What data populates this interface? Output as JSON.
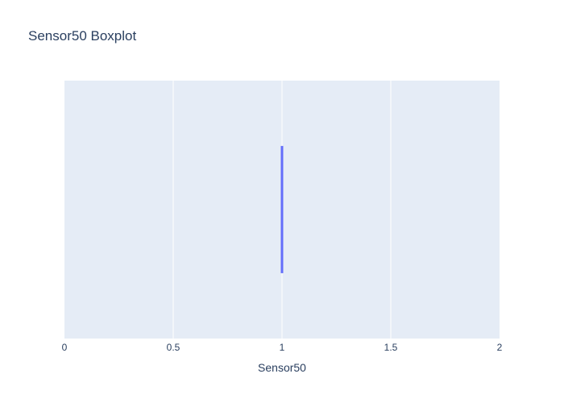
{
  "chart_data": {
    "type": "box",
    "title": "Sensor50 Boxplot",
    "xlabel": "Sensor50",
    "ylabel": "",
    "xlim": [
      0,
      2
    ],
    "x_ticks": [
      "0",
      "0.5",
      "1",
      "1.5",
      "2"
    ],
    "x_tick_values": [
      0,
      0.5,
      1,
      1.5,
      2
    ],
    "grid": true,
    "orientation": "horizontal",
    "series": [
      {
        "min": 1,
        "q1": 1,
        "median": 1,
        "q3": 1,
        "max": 1
      }
    ],
    "colors": {
      "plot_bg": "#e5ecf6",
      "grid": "#ffffff",
      "box": "#636efa",
      "text": "#2a3f5f"
    }
  }
}
